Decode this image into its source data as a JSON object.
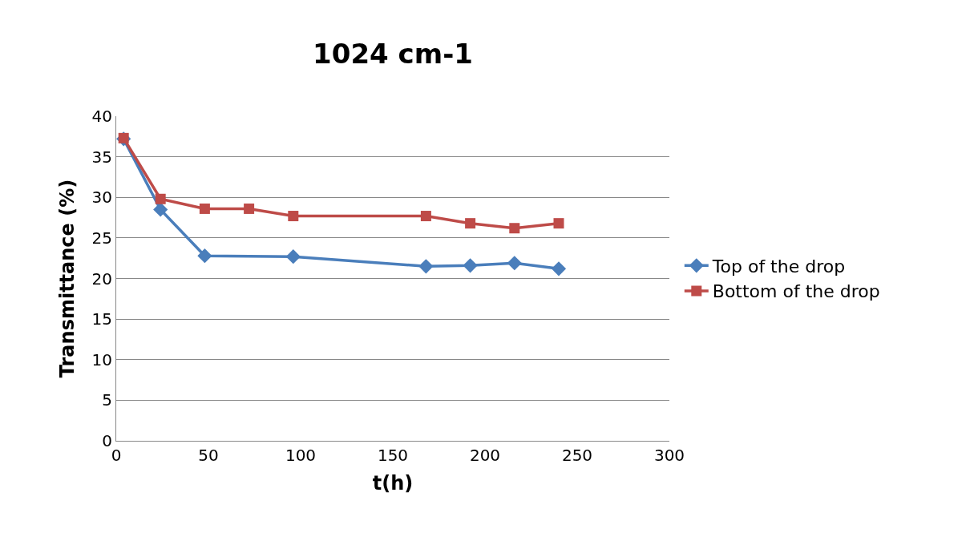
{
  "chart_data": {
    "type": "line",
    "title": "1024 cm-1",
    "xlabel": "t(h)",
    "ylabel": "Transmittance (%)",
    "x": [
      4,
      24,
      48,
      72,
      96,
      168,
      192,
      216,
      240
    ],
    "series": [
      {
        "name": "Top of the drop",
        "color": "#4a7ebb",
        "marker": "diamond",
        "values": [
          37.2,
          28.5,
          22.8,
          null,
          22.7,
          21.5,
          21.6,
          21.9,
          21.2
        ]
      },
      {
        "name": "Bottom of the drop",
        "color": "#be4b48",
        "marker": "square",
        "values": [
          37.3,
          29.8,
          28.6,
          28.6,
          27.7,
          27.7,
          26.8,
          26.2,
          26.8
        ]
      }
    ],
    "xlim": [
      0,
      300
    ],
    "xticks": [
      0,
      50,
      100,
      150,
      200,
      250,
      300
    ],
    "ylim": [
      0,
      40
    ],
    "yticks": [
      0,
      5,
      10,
      15,
      20,
      25,
      30,
      35,
      40
    ],
    "grid": "y",
    "legend": "right"
  }
}
